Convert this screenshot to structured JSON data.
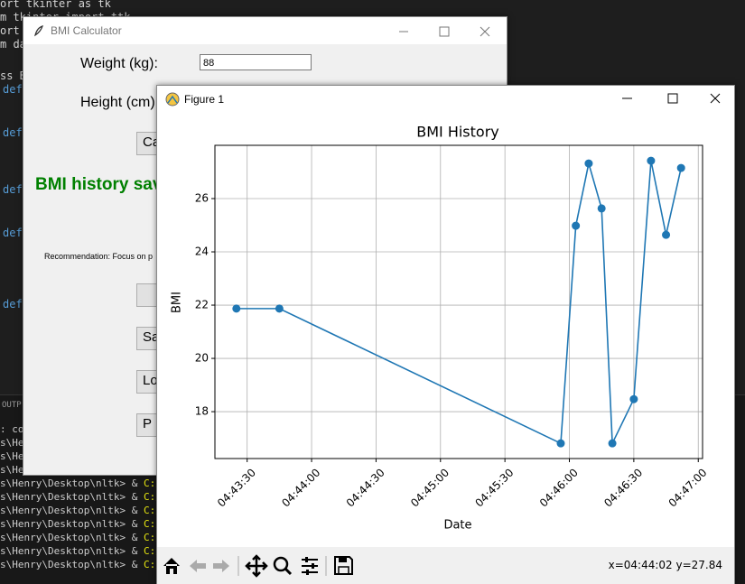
{
  "editor": {
    "code_lines": [
      "ort tkinter as tk",
      "m tkinter import ttk",
      "ort m",
      "m dat",
      "ss BM",
      "def",
      "def",
      "def",
      "def",
      "def"
    ],
    "panel_tab": "OUTP",
    "terminal_first": ": cou",
    "terminal_prompt": "s\\Henry\\Desktop\\nltk> & ",
    "terminal_command": "C:/Use"
  },
  "calculator": {
    "title": "BMI Calculator",
    "weight_label": "Weight (kg):",
    "weight_value": "88",
    "height_label": "Height (cm):",
    "calculate_button": "Ca",
    "status": "BMI history sav",
    "recommendation": "Recommendation: Focus on p",
    "buttons": [
      "Sa",
      "Lo",
      "P"
    ]
  },
  "figure": {
    "title": "Figure 1",
    "coordinates": "x=04:44:02 y=27.84"
  },
  "chart_data": {
    "type": "line",
    "title": "BMI History",
    "x_label": "Date",
    "y_label": "BMI",
    "x": [
      "04:43:25",
      "04:43:45",
      "04:45:56",
      "04:46:03",
      "04:46:09",
      "04:46:15",
      "04:46:20",
      "04:46:30",
      "04:46:38",
      "04:46:45",
      "04:46:52"
    ],
    "series": [
      {
        "name": "BMI",
        "color": "#1f77b4",
        "values": [
          21.87,
          21.87,
          16.81,
          24.98,
          27.32,
          25.63,
          16.81,
          18.47,
          27.42,
          24.64,
          27.15
        ]
      }
    ],
    "xlim": [
      "04:43:15",
      "04:47:02"
    ],
    "xticks": [
      "04:43:30",
      "04:44:00",
      "04:44:30",
      "04:45:00",
      "04:45:30",
      "04:46:00",
      "04:46:30",
      "04:47:00"
    ],
    "ylim": [
      16.24,
      28.0
    ],
    "yticks": [
      18,
      20,
      22,
      24,
      26
    ],
    "grid": true
  }
}
